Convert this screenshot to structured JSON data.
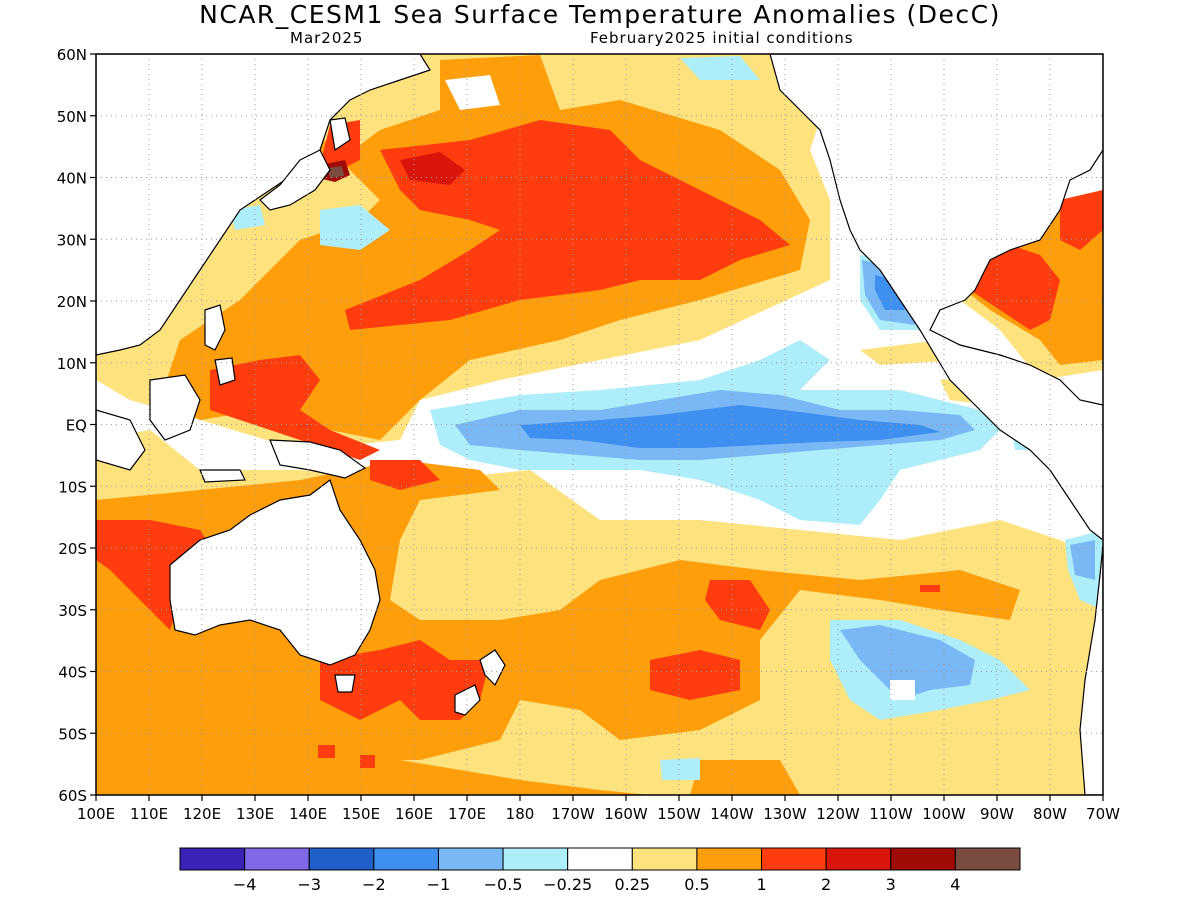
{
  "header": {
    "title": "NCAR_CESM1 Sea Surface Temperature Anomalies (DecC)",
    "valid_month": "Mar2025",
    "init": "February2025 initial conditions"
  },
  "axes": {
    "lat_labels": [
      "60N",
      "50N",
      "40N",
      "30N",
      "20N",
      "10N",
      "EQ",
      "10S",
      "20S",
      "30S",
      "40S",
      "50S",
      "60S"
    ],
    "lon_labels": [
      "100E",
      "110E",
      "120E",
      "130E",
      "140E",
      "150E",
      "160E",
      "170E",
      "180",
      "170W",
      "160W",
      "150W",
      "140W",
      "130W",
      "120W",
      "110W",
      "100W",
      "90W",
      "80W",
      "70W"
    ],
    "lat_range": [
      60,
      -60
    ],
    "lon_range": [
      100,
      290
    ]
  },
  "colorbar": {
    "colors": [
      "#3a22b6",
      "#8068e8",
      "#1e5fc8",
      "#3e8ff0",
      "#79b7f5",
      "#aeeefa",
      "#ffffff",
      "#fde27e",
      "#ff9e0b",
      "#ff3c0e",
      "#d9150c",
      "#a00b06",
      "#7a4c3f"
    ],
    "labels": [
      "−4",
      "−3",
      "−2",
      "−1",
      "−0.5",
      "−0.25",
      "0.25",
      "0.5",
      "1",
      "2",
      "3",
      "4"
    ]
  },
  "map": {
    "region": "Pacific Ocean",
    "grid": "dotted"
  }
}
